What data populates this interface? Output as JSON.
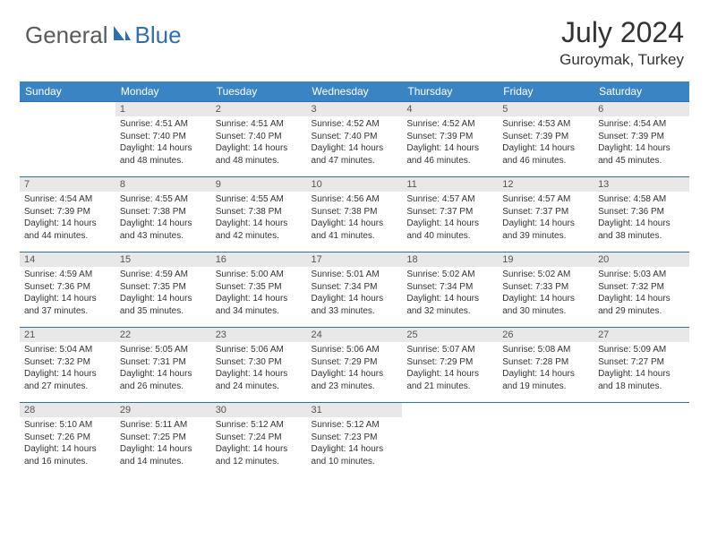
{
  "brand": {
    "part1": "General",
    "part2": "Blue"
  },
  "title": "July 2024",
  "location": "Guroymak, Turkey",
  "colors": {
    "header_bg": "#3b84c4",
    "header_text": "#ffffff",
    "daynum_bg": "#e8e8e8",
    "border": "#2f6fad",
    "logo_gray": "#5a5a5a",
    "logo_blue": "#2f6fad",
    "text": "#333333"
  },
  "weekdays": [
    "Sunday",
    "Monday",
    "Tuesday",
    "Wednesday",
    "Thursday",
    "Friday",
    "Saturday"
  ],
  "weeks": [
    [
      {
        "n": "",
        "sr": "",
        "ss": "",
        "dl": ""
      },
      {
        "n": "1",
        "sr": "Sunrise: 4:51 AM",
        "ss": "Sunset: 7:40 PM",
        "dl": "Daylight: 14 hours and 48 minutes."
      },
      {
        "n": "2",
        "sr": "Sunrise: 4:51 AM",
        "ss": "Sunset: 7:40 PM",
        "dl": "Daylight: 14 hours and 48 minutes."
      },
      {
        "n": "3",
        "sr": "Sunrise: 4:52 AM",
        "ss": "Sunset: 7:40 PM",
        "dl": "Daylight: 14 hours and 47 minutes."
      },
      {
        "n": "4",
        "sr": "Sunrise: 4:52 AM",
        "ss": "Sunset: 7:39 PM",
        "dl": "Daylight: 14 hours and 46 minutes."
      },
      {
        "n": "5",
        "sr": "Sunrise: 4:53 AM",
        "ss": "Sunset: 7:39 PM",
        "dl": "Daylight: 14 hours and 46 minutes."
      },
      {
        "n": "6",
        "sr": "Sunrise: 4:54 AM",
        "ss": "Sunset: 7:39 PM",
        "dl": "Daylight: 14 hours and 45 minutes."
      }
    ],
    [
      {
        "n": "7",
        "sr": "Sunrise: 4:54 AM",
        "ss": "Sunset: 7:39 PM",
        "dl": "Daylight: 14 hours and 44 minutes."
      },
      {
        "n": "8",
        "sr": "Sunrise: 4:55 AM",
        "ss": "Sunset: 7:38 PM",
        "dl": "Daylight: 14 hours and 43 minutes."
      },
      {
        "n": "9",
        "sr": "Sunrise: 4:55 AM",
        "ss": "Sunset: 7:38 PM",
        "dl": "Daylight: 14 hours and 42 minutes."
      },
      {
        "n": "10",
        "sr": "Sunrise: 4:56 AM",
        "ss": "Sunset: 7:38 PM",
        "dl": "Daylight: 14 hours and 41 minutes."
      },
      {
        "n": "11",
        "sr": "Sunrise: 4:57 AM",
        "ss": "Sunset: 7:37 PM",
        "dl": "Daylight: 14 hours and 40 minutes."
      },
      {
        "n": "12",
        "sr": "Sunrise: 4:57 AM",
        "ss": "Sunset: 7:37 PM",
        "dl": "Daylight: 14 hours and 39 minutes."
      },
      {
        "n": "13",
        "sr": "Sunrise: 4:58 AM",
        "ss": "Sunset: 7:36 PM",
        "dl": "Daylight: 14 hours and 38 minutes."
      }
    ],
    [
      {
        "n": "14",
        "sr": "Sunrise: 4:59 AM",
        "ss": "Sunset: 7:36 PM",
        "dl": "Daylight: 14 hours and 37 minutes."
      },
      {
        "n": "15",
        "sr": "Sunrise: 4:59 AM",
        "ss": "Sunset: 7:35 PM",
        "dl": "Daylight: 14 hours and 35 minutes."
      },
      {
        "n": "16",
        "sr": "Sunrise: 5:00 AM",
        "ss": "Sunset: 7:35 PM",
        "dl": "Daylight: 14 hours and 34 minutes."
      },
      {
        "n": "17",
        "sr": "Sunrise: 5:01 AM",
        "ss": "Sunset: 7:34 PM",
        "dl": "Daylight: 14 hours and 33 minutes."
      },
      {
        "n": "18",
        "sr": "Sunrise: 5:02 AM",
        "ss": "Sunset: 7:34 PM",
        "dl": "Daylight: 14 hours and 32 minutes."
      },
      {
        "n": "19",
        "sr": "Sunrise: 5:02 AM",
        "ss": "Sunset: 7:33 PM",
        "dl": "Daylight: 14 hours and 30 minutes."
      },
      {
        "n": "20",
        "sr": "Sunrise: 5:03 AM",
        "ss": "Sunset: 7:32 PM",
        "dl": "Daylight: 14 hours and 29 minutes."
      }
    ],
    [
      {
        "n": "21",
        "sr": "Sunrise: 5:04 AM",
        "ss": "Sunset: 7:32 PM",
        "dl": "Daylight: 14 hours and 27 minutes."
      },
      {
        "n": "22",
        "sr": "Sunrise: 5:05 AM",
        "ss": "Sunset: 7:31 PM",
        "dl": "Daylight: 14 hours and 26 minutes."
      },
      {
        "n": "23",
        "sr": "Sunrise: 5:06 AM",
        "ss": "Sunset: 7:30 PM",
        "dl": "Daylight: 14 hours and 24 minutes."
      },
      {
        "n": "24",
        "sr": "Sunrise: 5:06 AM",
        "ss": "Sunset: 7:29 PM",
        "dl": "Daylight: 14 hours and 23 minutes."
      },
      {
        "n": "25",
        "sr": "Sunrise: 5:07 AM",
        "ss": "Sunset: 7:29 PM",
        "dl": "Daylight: 14 hours and 21 minutes."
      },
      {
        "n": "26",
        "sr": "Sunrise: 5:08 AM",
        "ss": "Sunset: 7:28 PM",
        "dl": "Daylight: 14 hours and 19 minutes."
      },
      {
        "n": "27",
        "sr": "Sunrise: 5:09 AM",
        "ss": "Sunset: 7:27 PM",
        "dl": "Daylight: 14 hours and 18 minutes."
      }
    ],
    [
      {
        "n": "28",
        "sr": "Sunrise: 5:10 AM",
        "ss": "Sunset: 7:26 PM",
        "dl": "Daylight: 14 hours and 16 minutes."
      },
      {
        "n": "29",
        "sr": "Sunrise: 5:11 AM",
        "ss": "Sunset: 7:25 PM",
        "dl": "Daylight: 14 hours and 14 minutes."
      },
      {
        "n": "30",
        "sr": "Sunrise: 5:12 AM",
        "ss": "Sunset: 7:24 PM",
        "dl": "Daylight: 14 hours and 12 minutes."
      },
      {
        "n": "31",
        "sr": "Sunrise: 5:12 AM",
        "ss": "Sunset: 7:23 PM",
        "dl": "Daylight: 14 hours and 10 minutes."
      },
      {
        "n": "",
        "sr": "",
        "ss": "",
        "dl": ""
      },
      {
        "n": "",
        "sr": "",
        "ss": "",
        "dl": ""
      },
      {
        "n": "",
        "sr": "",
        "ss": "",
        "dl": ""
      }
    ]
  ]
}
